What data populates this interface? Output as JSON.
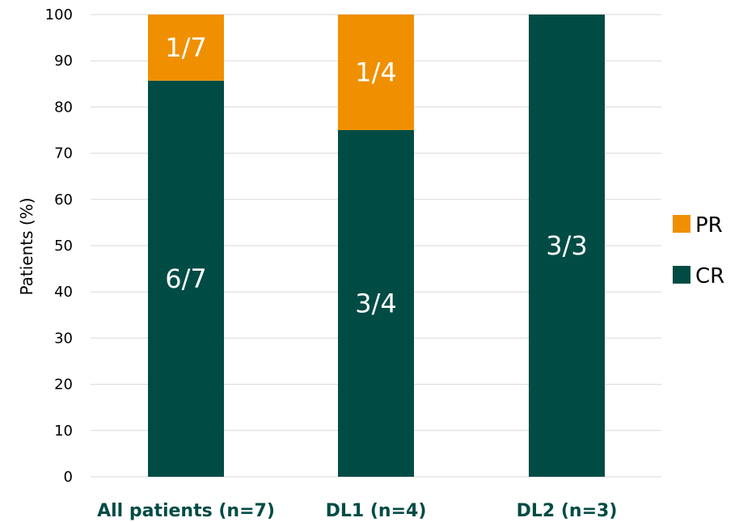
{
  "chart_data": {
    "type": "bar",
    "stacked": true,
    "categories": [
      "All patients (n=7)",
      "DL1 (n=4)",
      "DL2 (n=3)"
    ],
    "series": [
      {
        "name": "CR",
        "color": "#004c45",
        "values": [
          85.7,
          75,
          100
        ],
        "labels": [
          "6/7",
          "3/4",
          "3/3"
        ]
      },
      {
        "name": "PR",
        "color": "#f09000",
        "values": [
          14.3,
          25,
          0
        ],
        "labels": [
          "1/7",
          "1/4",
          ""
        ]
      }
    ],
    "ylabel": "Patients (%)",
    "xlabel": "",
    "ylim": [
      0,
      100
    ],
    "yticks": [
      0,
      10,
      20,
      30,
      40,
      50,
      60,
      70,
      80,
      90,
      100
    ],
    "grid": true,
    "legend": {
      "position": "right",
      "order": [
        "PR",
        "CR"
      ]
    },
    "category_label_color": "#004c45"
  }
}
